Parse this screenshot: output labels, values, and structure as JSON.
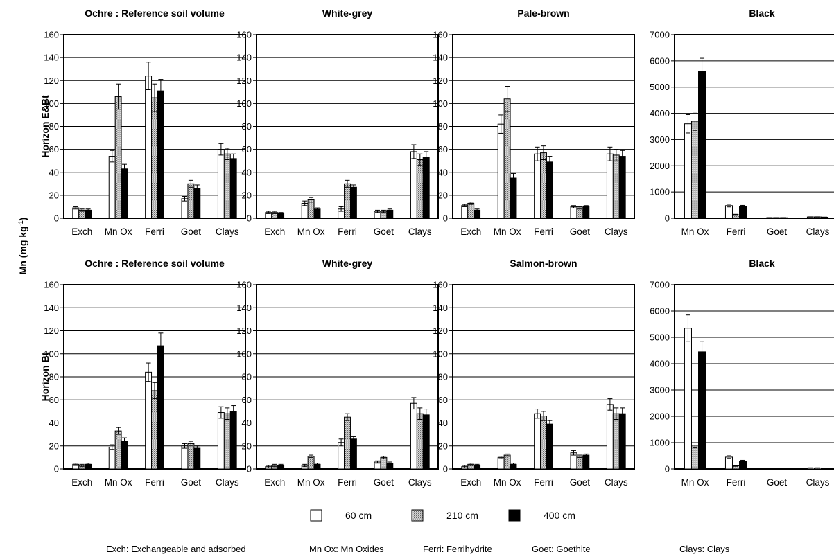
{
  "y_label_main": "Mn (mg kg",
  "y_label_sup": "-1",
  "y_label_close": ")",
  "legend": [
    {
      "label": "60 cm",
      "fill": "white"
    },
    {
      "label": "210 cm",
      "fill": "hatch"
    },
    {
      "label": "400 cm",
      "fill": "black"
    }
  ],
  "footnote": [
    "Exch: Exchangeable and adsorbed",
    "Mn Ox: Mn Oxides",
    "Ferri: Ferrihydrite",
    "Goet: Goethite",
    "Clays: Clays"
  ],
  "colors": {
    "bar_white": "#ffffff",
    "bar_black": "#000000",
    "hatch_bg": "#dcdcdc",
    "hatch_dot": "#666666",
    "grid": "#000000"
  },
  "chart_data": [
    {
      "type": "bar",
      "title": "Ochre : Reference soil volume",
      "row_label": "Horizon E&Bt",
      "ylim": [
        0,
        160
      ],
      "yticks": [
        0,
        20,
        40,
        60,
        80,
        100,
        120,
        140,
        160
      ],
      "categories": [
        "Exch",
        "Mn Ox",
        "Ferri",
        "Goet",
        "Clays"
      ],
      "grid": true,
      "series": [
        {
          "name": "60 cm",
          "values": [
            9,
            54,
            124,
            17,
            60
          ],
          "errors": [
            1,
            5,
            12,
            2,
            5
          ]
        },
        {
          "name": "210 cm",
          "values": [
            7,
            106,
            105,
            30,
            56
          ],
          "errors": [
            1,
            11,
            12,
            3,
            5
          ]
        },
        {
          "name": "400 cm",
          "values": [
            7,
            43,
            111,
            26,
            52
          ],
          "errors": [
            1,
            4,
            10,
            3,
            4
          ]
        }
      ]
    },
    {
      "type": "bar",
      "title": "White-grey",
      "row_label": "",
      "ylim": [
        0,
        160
      ],
      "yticks": [
        0,
        20,
        40,
        60,
        80,
        100,
        120,
        140,
        160
      ],
      "categories": [
        "Exch",
        "Mn Ox",
        "Ferri",
        "Goet",
        "Clays"
      ],
      "grid": true,
      "series": [
        {
          "name": "60 cm",
          "values": [
            5,
            13,
            8,
            6,
            58
          ],
          "errors": [
            1,
            2,
            2,
            1,
            6
          ]
        },
        {
          "name": "210 cm",
          "values": [
            5,
            16,
            30,
            6,
            51
          ],
          "errors": [
            1,
            2,
            3,
            1,
            5
          ]
        },
        {
          "name": "400 cm",
          "values": [
            4,
            8,
            27,
            7,
            53
          ],
          "errors": [
            1,
            1,
            2,
            1,
            5
          ]
        }
      ]
    },
    {
      "type": "bar",
      "title": "Pale-brown",
      "row_label": "",
      "ylim": [
        0,
        160
      ],
      "yticks": [
        0,
        20,
        40,
        60,
        80,
        100,
        120,
        140,
        160
      ],
      "categories": [
        "Exch",
        "Mn Ox",
        "Ferri",
        "Goet",
        "Clays"
      ],
      "grid": true,
      "series": [
        {
          "name": "60 cm",
          "values": [
            11,
            82,
            56,
            10,
            56
          ],
          "errors": [
            1,
            8,
            6,
            1,
            6
          ]
        },
        {
          "name": "210 cm",
          "values": [
            13,
            104,
            57,
            9,
            55
          ],
          "errors": [
            1,
            11,
            6,
            1,
            5
          ]
        },
        {
          "name": "400 cm",
          "values": [
            7,
            35,
            49,
            10,
            54
          ],
          "errors": [
            1,
            4,
            5,
            1,
            5
          ]
        }
      ]
    },
    {
      "type": "bar",
      "title": "Black",
      "row_label": "",
      "ylim": [
        0,
        7000
      ],
      "yticks": [
        0,
        1000,
        2000,
        3000,
        4000,
        5000,
        6000,
        7000
      ],
      "categories": [
        "Mn Ox",
        "Ferri",
        "Goet",
        "Clays"
      ],
      "grid": true,
      "series": [
        {
          "name": "60 cm",
          "values": [
            3600,
            480,
            20,
            50
          ],
          "errors": [
            350,
            50,
            5,
            5
          ]
        },
        {
          "name": "210 cm",
          "values": [
            3700,
            130,
            20,
            50
          ],
          "errors": [
            350,
            20,
            5,
            5
          ]
        },
        {
          "name": "400 cm",
          "values": [
            5600,
            450,
            20,
            40
          ],
          "errors": [
            500,
            40,
            5,
            5
          ]
        }
      ]
    },
    {
      "type": "bar",
      "title": "Ochre : Reference soil volume",
      "row_label": "Horizon Bt",
      "ylim": [
        0,
        160
      ],
      "yticks": [
        0,
        20,
        40,
        60,
        80,
        100,
        120,
        140,
        160
      ],
      "categories": [
        "Exch",
        "Mn Ox",
        "Ferri",
        "Goet",
        "Clays"
      ],
      "grid": true,
      "series": [
        {
          "name": "60 cm",
          "values": [
            4,
            19,
            84,
            20,
            49
          ],
          "errors": [
            1,
            2,
            8,
            2,
            5
          ]
        },
        {
          "name": "210 cm",
          "values": [
            3,
            33,
            68,
            22,
            48
          ],
          "errors": [
            1,
            3,
            7,
            2,
            5
          ]
        },
        {
          "name": "400 cm",
          "values": [
            4,
            24,
            107,
            18,
            50
          ],
          "errors": [
            1,
            3,
            11,
            2,
            5
          ]
        }
      ]
    },
    {
      "type": "bar",
      "title": "White-grey",
      "row_label": "",
      "ylim": [
        0,
        160
      ],
      "yticks": [
        0,
        20,
        40,
        60,
        80,
        100,
        120,
        140,
        160
      ],
      "categories": [
        "Exch",
        "Mn Ox",
        "Ferri",
        "Goet",
        "Clays"
      ],
      "grid": true,
      "series": [
        {
          "name": "60 cm",
          "values": [
            2,
            3,
            23,
            6,
            57
          ],
          "errors": [
            1,
            1,
            3,
            1,
            5
          ]
        },
        {
          "name": "210 cm",
          "values": [
            3,
            11,
            45,
            10,
            48
          ],
          "errors": [
            1,
            1,
            3,
            1,
            5
          ]
        },
        {
          "name": "400 cm",
          "values": [
            3,
            4,
            26,
            5,
            47
          ],
          "errors": [
            1,
            1,
            2,
            1,
            5
          ]
        }
      ]
    },
    {
      "type": "bar",
      "title": "Salmon-brown",
      "row_label": "",
      "ylim": [
        0,
        160
      ],
      "yticks": [
        0,
        20,
        40,
        60,
        80,
        100,
        120,
        140,
        160
      ],
      "categories": [
        "Exch",
        "Mn Ox",
        "Ferri",
        "Goet",
        "Clays"
      ],
      "grid": true,
      "series": [
        {
          "name": "60 cm",
          "values": [
            2,
            10,
            48,
            14,
            56
          ],
          "errors": [
            1,
            1,
            4,
            2,
            5
          ]
        },
        {
          "name": "210 cm",
          "values": [
            4,
            12,
            46,
            11,
            48
          ],
          "errors": [
            1,
            1,
            4,
            1,
            5
          ]
        },
        {
          "name": "400 cm",
          "values": [
            3,
            4,
            39,
            12,
            48
          ],
          "errors": [
            1,
            1,
            3,
            1,
            5
          ]
        }
      ]
    },
    {
      "type": "bar",
      "title": "Black",
      "row_label": "",
      "ylim": [
        0,
        7000
      ],
      "yticks": [
        0,
        1000,
        2000,
        3000,
        4000,
        5000,
        6000,
        7000
      ],
      "categories": [
        "Mn Ox",
        "Ferri",
        "Goet",
        "Clays"
      ],
      "grid": true,
      "series": [
        {
          "name": "60 cm",
          "values": [
            5350,
            450,
            10,
            40
          ],
          "errors": [
            500,
            50,
            5,
            5
          ]
        },
        {
          "name": "210 cm",
          "values": [
            900,
            120,
            10,
            40
          ],
          "errors": [
            100,
            20,
            5,
            5
          ]
        },
        {
          "name": "400 cm",
          "values": [
            4450,
            300,
            10,
            30
          ],
          "errors": [
            400,
            30,
            5,
            5
          ]
        }
      ]
    }
  ]
}
